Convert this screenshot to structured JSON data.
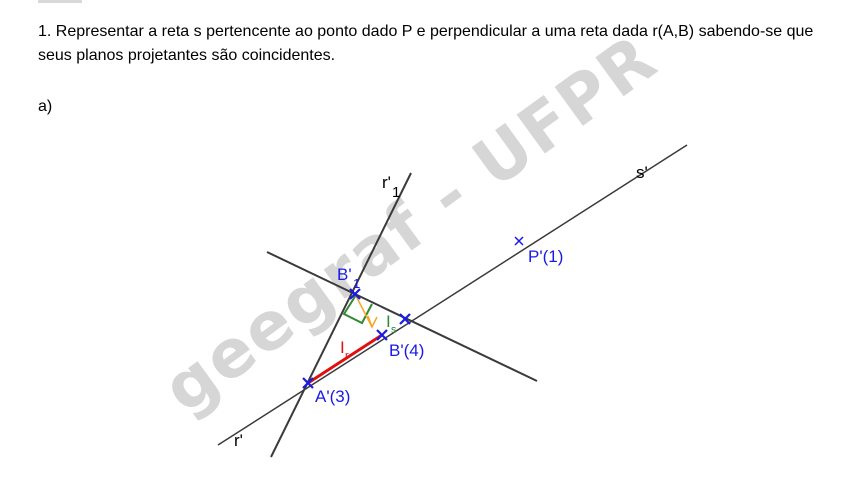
{
  "exercise": {
    "statement": "1. Representar a reta s pertencente ao ponto dado P e perpendicular a uma reta dada r(A,B) sabendo-se que seus planos projetantes são coincidentes.",
    "item_label": "a)"
  },
  "watermark": "geegraf - UFPR",
  "labels": {
    "r1_prime": "r'",
    "r1_sub": "1",
    "s_prime": "s'",
    "p_prime": "P'(1)",
    "b1_prime": "B'",
    "b1_sub": "1",
    "b_prime": "B'(4)",
    "a_prime": "A'(3)",
    "r_prime": "r'",
    "i_r": "I",
    "i_r_sub": "r",
    "i_s": "I",
    "i_s_sub": "s"
  },
  "colors": {
    "lines": "#3a3a3a",
    "points": "#1a1ae6",
    "true_length": "#e01010",
    "right_angle": "#2e8b2e",
    "orange": "#f5a623",
    "watermark": "#d6d6d6"
  }
}
